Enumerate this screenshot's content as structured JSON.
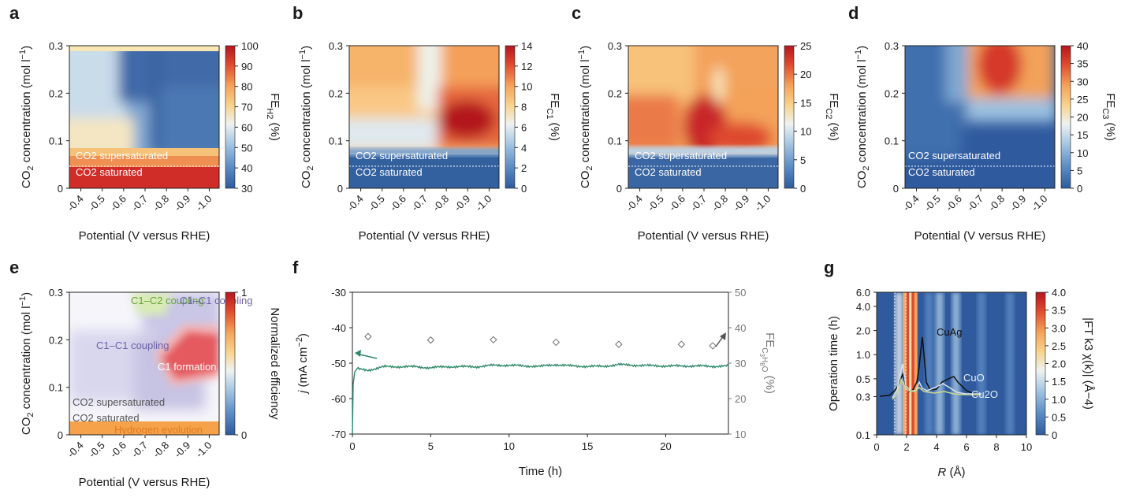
{
  "colors": {
    "diverging": [
      "#2f5a9e",
      "#5b8cc4",
      "#a9c9e3",
      "#eef2f1",
      "#f8d48e",
      "#f4a25a",
      "#de4a2e",
      "#b3161f"
    ],
    "navy": "#2a4f86",
    "green_line": "#2f8a67",
    "marker": "#6f6f6f",
    "region_c1c2": "#d7e9b0",
    "region_c1c1": "#cbc6e4",
    "region_hydrogen": "#f5a24b",
    "region_hydrogen_text": "#e07b20",
    "c1c2_text": "#6aa43a",
    "c1c1_text": "#6b63a8"
  },
  "chart_data": [
    {
      "id": "a",
      "type": "heatmap",
      "panel_label": "a",
      "xlabel": "Potential (V versus RHE)",
      "ylabel": "CO2 concentration (mol l−1)",
      "x_ticks": [
        "-0.4",
        "-0.5",
        "-0.6",
        "-0.7",
        "-0.8",
        "-0.9",
        "-1.0"
      ],
      "y_ticks": [
        "0",
        "0.1",
        "0.2",
        "0.3"
      ],
      "ylim": [
        0,
        0.3
      ],
      "colorbar": {
        "label_main": "FE",
        "label_sub": "H2",
        "label_unit": "(%)",
        "min": 30,
        "max": 100,
        "ticks": [
          "100",
          "90",
          "80",
          "70",
          "60",
          "50",
          "40",
          "30"
        ]
      },
      "annotations": {
        "supersaturated": "CO2 supersaturated",
        "saturated": "CO2 saturated"
      },
      "boundary_y": 0.05
    },
    {
      "id": "b",
      "type": "heatmap",
      "panel_label": "b",
      "xlabel": "Potential (V versus RHE)",
      "ylabel": "CO2 concentration (mol l−1)",
      "x_ticks": [
        "-0.4",
        "-0.5",
        "-0.6",
        "-0.7",
        "-0.8",
        "-0.9",
        "-1.0"
      ],
      "y_ticks": [
        "0",
        "0.1",
        "0.2",
        "0.3"
      ],
      "ylim": [
        0,
        0.3
      ],
      "colorbar": {
        "label_main": "FE",
        "label_sub": "C1",
        "label_unit": "(%)",
        "min": 0,
        "max": 14,
        "ticks": [
          "14",
          "12",
          "10",
          "8",
          "6",
          "4",
          "2",
          "0"
        ]
      },
      "annotations": {
        "supersaturated": "CO2 supersaturated",
        "saturated": "CO2 saturated"
      },
      "boundary_y": 0.05
    },
    {
      "id": "c",
      "type": "heatmap",
      "panel_label": "c",
      "xlabel": "Potential (V versus RHE)",
      "ylabel": "CO2 concentration (mol l−1)",
      "x_ticks": [
        "-0.4",
        "-0.5",
        "-0.6",
        "-0.7",
        "-0.8",
        "-0.9",
        "-1.0"
      ],
      "y_ticks": [
        "0",
        "0.1",
        "0.2",
        "0.3"
      ],
      "ylim": [
        0,
        0.3
      ],
      "colorbar": {
        "label_main": "FE",
        "label_sub": "C2",
        "label_unit": "(%)",
        "min": 0,
        "max": 25,
        "ticks": [
          "25",
          "20",
          "15",
          "10",
          "5",
          "0"
        ]
      },
      "annotations": {
        "supersaturated": "CO2 supersaturated",
        "saturated": "CO2 saturated"
      },
      "boundary_y": 0.05
    },
    {
      "id": "d",
      "type": "heatmap",
      "panel_label": "d",
      "xlabel": "Potential (V versus RHE)",
      "ylabel": "CO2 concentration (mol l−1)",
      "x_ticks": [
        "-0.4",
        "-0.5",
        "-0.6",
        "-0.7",
        "-0.8",
        "-0.9",
        "-1.0"
      ],
      "y_ticks": [
        "0",
        "0.1",
        "0.2",
        "0.3"
      ],
      "ylim": [
        0,
        0.3
      ],
      "colorbar": {
        "label_main": "FE",
        "label_sub": "C3",
        "label_unit": "(%)",
        "min": 0,
        "max": 40,
        "ticks": [
          "40",
          "35",
          "30",
          "25",
          "20",
          "15",
          "10",
          "5",
          "0"
        ]
      },
      "annotations": {
        "supersaturated": "CO2 supersaturated",
        "saturated": "CO2 saturated"
      },
      "boundary_y": 0.05
    },
    {
      "id": "e",
      "type": "heatmap",
      "panel_label": "e",
      "xlabel": "Potential (V versus RHE)",
      "ylabel": "CO2 concentration (mol l−1)",
      "x_ticks": [
        "-0.4",
        "-0.5",
        "-0.6",
        "-0.7",
        "-0.8",
        "-0.9",
        "-1.0"
      ],
      "y_ticks": [
        "0",
        "0.1",
        "0.2",
        "0.3"
      ],
      "ylim": [
        0,
        0.3
      ],
      "colorbar": {
        "label": "Normalized efficiency",
        "min": 0,
        "max": 1,
        "ticks": [
          "1",
          "0"
        ]
      },
      "regions": {
        "c1c2": "C1–C2 coupling",
        "c1c1_top": "C1–C1 coupling",
        "c1c1_left": "C1–C1 coupling",
        "c1_formation": "C1 formation",
        "supersaturated": "CO2 supersaturated",
        "saturated": "CO2 saturated",
        "hydrogen": "Hydrogen evolution"
      }
    },
    {
      "id": "f",
      "type": "line",
      "panel_label": "f",
      "xlabel": "Time (h)",
      "ylabel": "j (mA cm−2)",
      "y2label": "FE C3H8O (%)",
      "xlim": [
        0,
        24
      ],
      "ylim": [
        -70,
        -30
      ],
      "y2lim": [
        10,
        50
      ],
      "x_ticks": [
        "0",
        "5",
        "10",
        "15",
        "20"
      ],
      "y_ticks": [
        "-30",
        "-40",
        "-50",
        "-60",
        "-70"
      ],
      "y2_ticks": [
        "50",
        "40",
        "30",
        "20",
        "10"
      ],
      "series": [
        {
          "name": "j",
          "axis": "left",
          "type": "line",
          "x": [
            0,
            0.05,
            0.15,
            0.3,
            0.6,
            1.0,
            1.5,
            2.0,
            3.0,
            4.0,
            5.0,
            6.0,
            7.0,
            8.0,
            9.0,
            10.0,
            11.0,
            12.0,
            13.0,
            14.0,
            15.0,
            16.0,
            17.0,
            18.0,
            19.0,
            20.0,
            21.0,
            22.0,
            23.0,
            24.0
          ],
          "values": [
            -70,
            -56,
            -52.5,
            -51.5,
            -51.5,
            -52,
            -51.5,
            -51,
            -51,
            -51,
            -51.3,
            -51,
            -51,
            -51,
            -50.6,
            -50.6,
            -50.8,
            -50.9,
            -50.4,
            -50.8,
            -50.9,
            -50.9,
            -50.4,
            -50.6,
            -50.7,
            -50.8,
            -50.8,
            -50.8,
            -50.9,
            -50.8
          ]
        },
        {
          "name": "FE C3H8O",
          "axis": "right",
          "type": "scatter",
          "x": [
            1,
            5,
            9,
            13,
            17,
            21,
            23
          ],
          "values": [
            37.5,
            36.5,
            36.6,
            35.9,
            35.3,
            35.3,
            34.9
          ]
        }
      ]
    },
    {
      "id": "g",
      "type": "heatmap",
      "panel_label": "g",
      "xlabel": "R (Å)",
      "ylabel": "Operation time (h)",
      "xlim": [
        0,
        10
      ],
      "x_ticks": [
        "0",
        "2",
        "4",
        "6",
        "8",
        "10"
      ],
      "y_ticks": [
        "6.0",
        "4.0",
        "2.0",
        "1.0",
        "0.5",
        "0.3",
        "0.1"
      ],
      "y_tick_values": [
        6.0,
        4.0,
        2.0,
        1.0,
        0.5,
        0.3,
        0.1
      ],
      "colorbar": {
        "label": "|FT k3 χ(k)| (Å−4)",
        "min": 0,
        "max": 4.0,
        "ticks": [
          "4.0",
          "3.5",
          "3.0",
          "2.5",
          "2.0",
          "1.5",
          "1.0",
          "0.5",
          "0"
        ]
      },
      "legend": [
        "CuAg",
        "CuO",
        "Cu2O"
      ],
      "bands": [
        {
          "center": 2.25,
          "value": 4.0
        },
        {
          "center": 1.5,
          "value": 1.6
        },
        {
          "center": 3.5,
          "value": 0.8
        },
        {
          "center": 4.2,
          "value": 1.2
        },
        {
          "center": 5.3,
          "value": 0.9
        },
        {
          "center": 7.0,
          "value": 0.7
        },
        {
          "center": 8.9,
          "value": 0.7
        }
      ]
    }
  ]
}
